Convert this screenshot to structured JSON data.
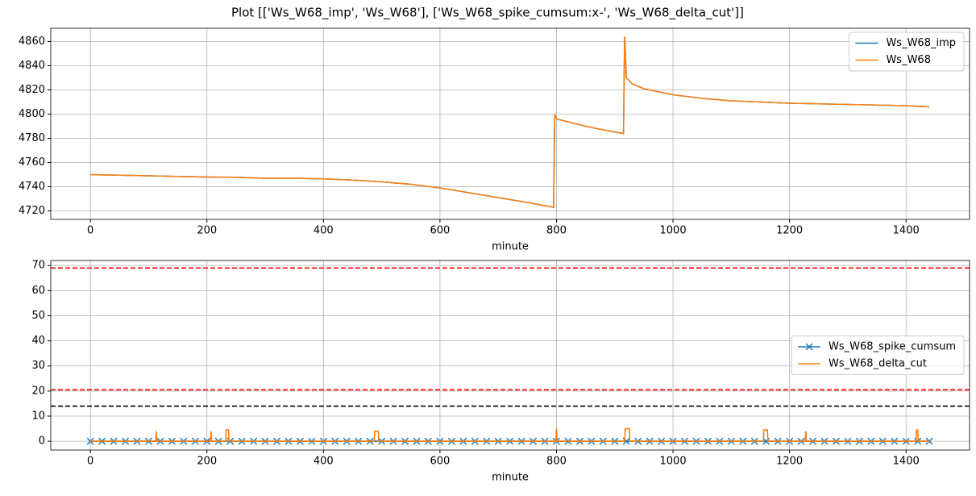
{
  "title": "Plot [['Ws_W68_imp', 'Ws_W68'], ['Ws_W68_spike_cumsum:x-', 'Ws_W68_delta_cut']]",
  "chart_data": [
    {
      "type": "line",
      "xlabel": "minute",
      "x": [
        0,
        50,
        100,
        150,
        200,
        250,
        300,
        350,
        400,
        450,
        500,
        550,
        600,
        650,
        700,
        750,
        795,
        797,
        800,
        850,
        880,
        915,
        917,
        920,
        930,
        950,
        1000,
        1050,
        1100,
        1150,
        1200,
        1250,
        1300,
        1350,
        1400,
        1440
      ],
      "series": [
        {
          "name": "Ws_W68_imp",
          "color": "#1f77b4",
          "values": [
            4750,
            4749.5,
            4749,
            4748.5,
            4748,
            4747.8,
            4747,
            4747,
            4746.5,
            4745.5,
            4744,
            4742,
            4739,
            4735,
            4731,
            4727,
            4723,
            4800,
            4796,
            4790,
            4787,
            4784,
            4864,
            4830,
            4825,
            4821,
            4816,
            4813,
            4811,
            4810,
            4809,
            4808.5,
            4808,
            4807.5,
            4807,
            4806
          ]
        },
        {
          "name": "Ws_W68",
          "color": "#ff7f0e",
          "values": [
            4750,
            4749.5,
            4749,
            4748.5,
            4748,
            4747.8,
            4747,
            4747,
            4746.5,
            4745.5,
            4744,
            4742,
            4739,
            4735,
            4731,
            4727,
            4723,
            4800,
            4796,
            4790,
            4787,
            4784,
            4864,
            4830,
            4825,
            4821,
            4816,
            4813,
            4811,
            4810,
            4809,
            4808.5,
            4808,
            4807.5,
            4807,
            4806
          ]
        }
      ],
      "xlim": [
        -68,
        1509
      ],
      "ylim": [
        4713,
        4871
      ],
      "xticks": [
        0,
        200,
        400,
        600,
        800,
        1000,
        1200,
        1400
      ],
      "yticks": [
        4720,
        4740,
        4760,
        4780,
        4800,
        4820,
        4840,
        4860
      ],
      "grid": true,
      "legend": "upper right"
    },
    {
      "type": "line",
      "xlabel": "minute",
      "series": [
        {
          "name": "Ws_W68_spike_cumsum",
          "color": "#1f77b4",
          "marker": "x",
          "x": [
            0,
            20,
            40,
            60,
            80,
            100,
            120,
            140,
            160,
            180,
            200,
            220,
            240,
            260,
            280,
            300,
            320,
            340,
            360,
            380,
            400,
            420,
            440,
            460,
            480,
            500,
            520,
            540,
            560,
            580,
            600,
            620,
            640,
            660,
            680,
            700,
            720,
            740,
            760,
            780,
            800,
            820,
            840,
            860,
            880,
            900,
            920,
            940,
            960,
            980,
            1000,
            1020,
            1040,
            1060,
            1080,
            1100,
            1120,
            1140,
            1160,
            1180,
            1200,
            1220,
            1240,
            1260,
            1280,
            1300,
            1320,
            1340,
            1360,
            1380,
            1400,
            1420,
            1440
          ],
          "values": [
            0,
            0,
            0,
            0,
            0,
            0,
            0,
            0,
            0,
            0,
            0,
            0,
            0,
            0,
            0,
            0,
            0,
            0,
            0,
            0,
            0,
            0,
            0,
            0,
            0,
            0,
            0,
            0,
            0,
            0,
            0,
            0,
            0,
            0,
            0,
            0,
            0,
            0,
            0,
            0,
            0,
            0,
            0,
            0,
            0,
            0,
            0,
            0,
            0,
            0,
            0,
            0,
            0,
            0,
            0,
            0,
            0,
            0,
            0,
            0,
            0,
            0,
            0,
            0,
            0,
            0,
            0,
            0,
            0,
            0,
            0,
            0,
            0
          ]
        },
        {
          "name": "Ws_W68_delta_cut",
          "color": "#ff7f0e",
          "x": [
            0,
            112,
            113,
            114,
            206,
            207,
            208,
            232,
            233,
            237,
            238,
            487,
            488,
            494,
            495,
            799,
            800,
            801,
            917,
            918,
            925,
            926,
            1155,
            1156,
            1162,
            1163,
            1227,
            1228,
            1229,
            1417,
            1418,
            1420,
            1421,
            1440
          ],
          "values": [
            0,
            0,
            4,
            0,
            0,
            4,
            0,
            0,
            4.5,
            4.5,
            0,
            0,
            4,
            4,
            0,
            0,
            5,
            0,
            0,
            5,
            5,
            0,
            0,
            4.5,
            4.5,
            0,
            0,
            4,
            0,
            0,
            4.5,
            4.5,
            0,
            0
          ]
        }
      ],
      "hlines": [
        {
          "value": 69,
          "color": "#ff0000"
        },
        {
          "value": 20.5,
          "color": "#ff0000"
        },
        {
          "value": 14,
          "color": "#000000"
        }
      ],
      "xlim": [
        -68,
        1509
      ],
      "ylim": [
        -3.5,
        72
      ],
      "xticks": [
        0,
        200,
        400,
        600,
        800,
        1000,
        1200,
        1400
      ],
      "yticks": [
        0,
        10,
        20,
        30,
        40,
        50,
        60,
        70
      ],
      "grid": true,
      "legend": "center right"
    }
  ]
}
